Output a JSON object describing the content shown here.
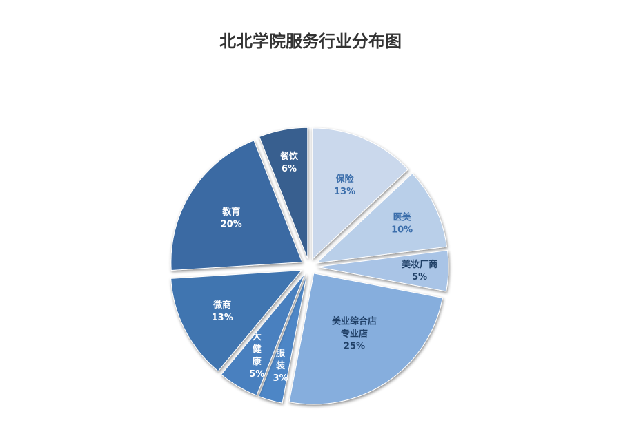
{
  "chart_data": {
    "type": "pie",
    "title": "北北学院服务行业分布图",
    "slices": [
      {
        "name": "保险",
        "value": 13,
        "label": "13%",
        "color": "#cad8ec",
        "text_color": "#3b6eab"
      },
      {
        "name": "医美",
        "value": 10,
        "label": "10%",
        "color": "#b9cfe9",
        "text_color": "#3b6eab"
      },
      {
        "name": "美妆厂商",
        "value": 5,
        "label": "5%",
        "color": "#a9c4e6",
        "text_color": "#1f3f66"
      },
      {
        "name": "美业综合店\n专业店",
        "value": 25,
        "label": "25%",
        "color": "#86aedd",
        "text_color": "#1f3f66"
      },
      {
        "name": "服\n装",
        "value": 3,
        "label": "3%",
        "color": "#4d86c6",
        "text_color": "#ffffff"
      },
      {
        "name": "大\n健\n康",
        "value": 5,
        "label": "5%",
        "color": "#4a80bf",
        "text_color": "#ffffff"
      },
      {
        "name": "微商",
        "value": 13,
        "label": "13%",
        "color": "#3f75b0",
        "text_color": "#ffffff"
      },
      {
        "name": "教育",
        "value": 20,
        "label": "20%",
        "color": "#3b6aa3",
        "text_color": "#ffffff"
      },
      {
        "name": "餐饮",
        "value": 6,
        "label": "6%",
        "color": "#375f8f",
        "text_color": "#ffffff"
      }
    ]
  }
}
